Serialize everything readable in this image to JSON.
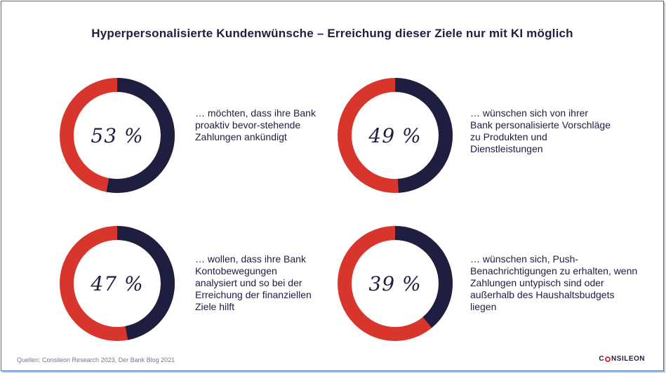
{
  "title": "Hyperpersonalisierte Kundenwünsche – Erreichung dieser Ziele nur mit KI möglich",
  "colors": {
    "value": "#1e1e40",
    "rest": "#d8362c"
  },
  "chart_data": [
    {
      "type": "pie",
      "value": 53,
      "label": "53 %",
      "text": "… möchten, dass ihre Bank proaktiv bevor-stehende Zahlungen ankündigt"
    },
    {
      "type": "pie",
      "value": 49,
      "label": "49 %",
      "text": "… wünschen sich von ihrer Bank personalisierte Vorschläge zu Produkten und Dienstleistungen"
    },
    {
      "type": "pie",
      "value": 47,
      "label": "47 %",
      "text": "… wollen, dass ihre Bank Kontobewegungen analysiert und so bei der Erreichung der finanziellen Ziele hilft"
    },
    {
      "type": "pie",
      "value": 39,
      "label": "39 %",
      "text": "… wünschen sich, Push-Benachrichtigungen zu erhalten, wenn Zahlungen untypisch sind oder außerhalb des Haushaltsbudgets liegen"
    }
  ],
  "footer": {
    "source": "Quellen: Consileon Research 2023, Der Bank Blog 2021"
  },
  "logo": {
    "prefix": "C",
    "suffix": "NSILEON"
  }
}
